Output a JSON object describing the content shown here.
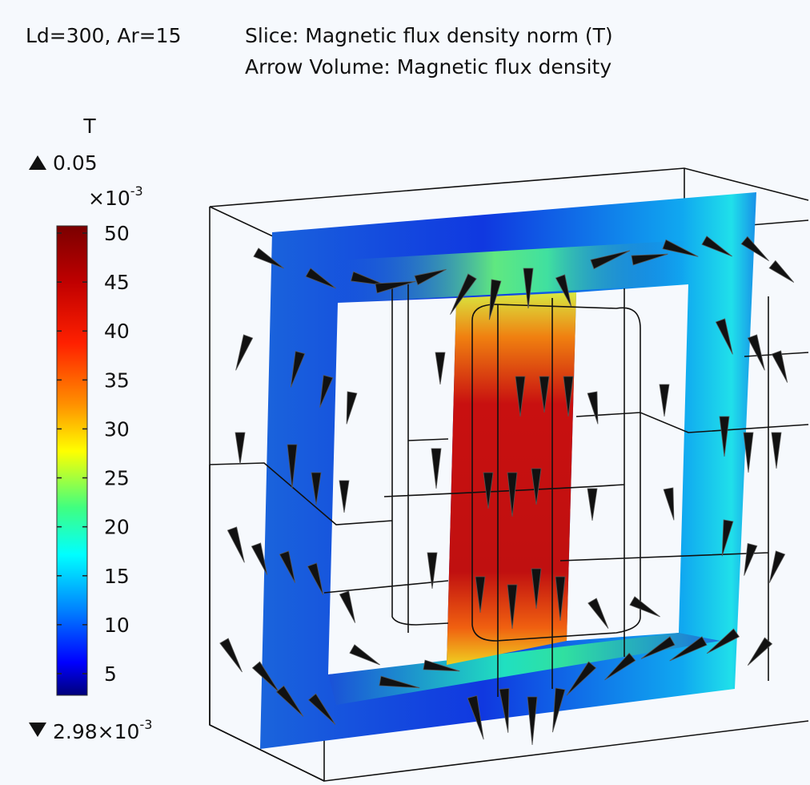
{
  "header": {
    "label": "Ld=300, Ar=15",
    "lines": [
      "Slice: Magnetic flux density norm (T)",
      "Arrow Volume: Magnetic flux density"
    ]
  },
  "colorbar": {
    "unit": "T",
    "max": "0.05",
    "scale": {
      "base": "×10",
      "exponent": "-3"
    },
    "ticks": [
      "50",
      "45",
      "40",
      "35",
      "30",
      "25",
      "20",
      "15",
      "10",
      "5"
    ],
    "min": {
      "base": "2.98×10",
      "exponent": "-3"
    }
  }
}
